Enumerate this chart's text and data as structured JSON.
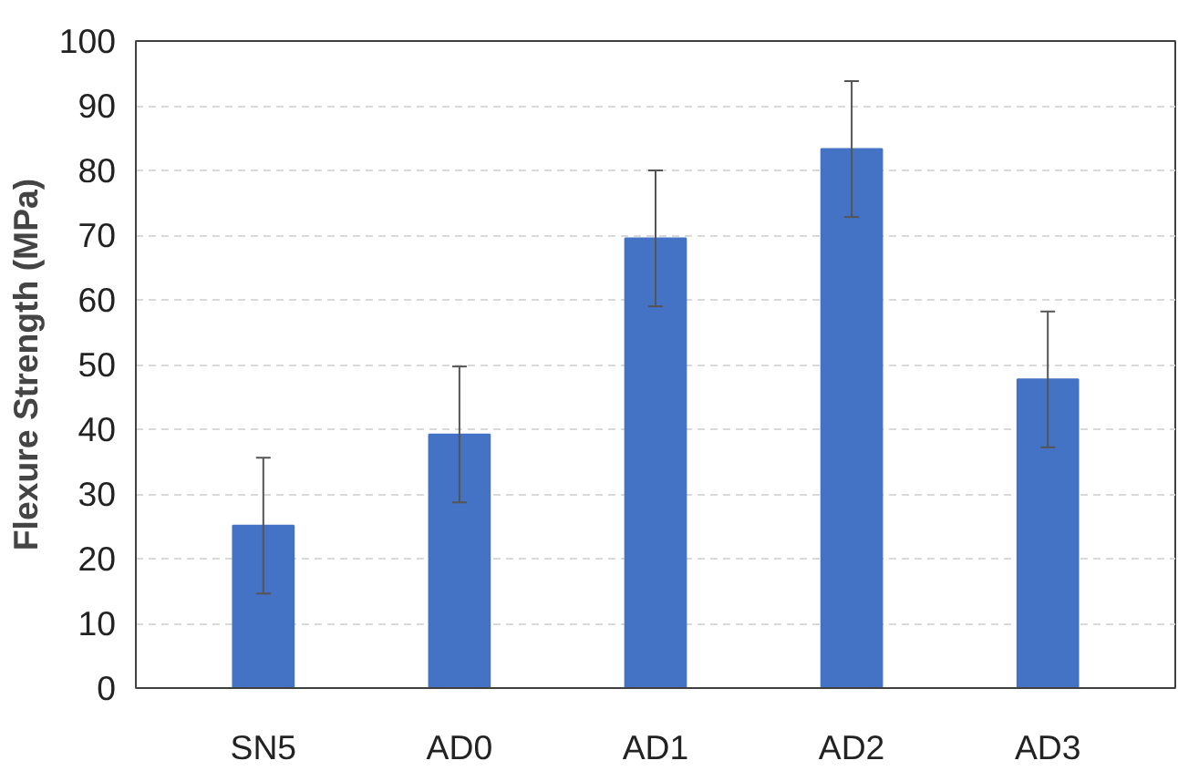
{
  "chart_data": {
    "type": "bar",
    "ylabel": "Flexure Strength (MPa)",
    "categories": [
      "SN5",
      "AD0",
      "AD1",
      "AD2",
      "AD3"
    ],
    "values": [
      25.1,
      39.2,
      69.5,
      83.3,
      47.7
    ],
    "errors": [
      10.5,
      10.5,
      10.5,
      10.5,
      10.5
    ],
    "color": "#4472c4",
    "ylim": [
      0,
      100
    ],
    "yticks": [
      0,
      10,
      20,
      30,
      40,
      50,
      60,
      70,
      80,
      90,
      100
    ],
    "grid": "y"
  }
}
